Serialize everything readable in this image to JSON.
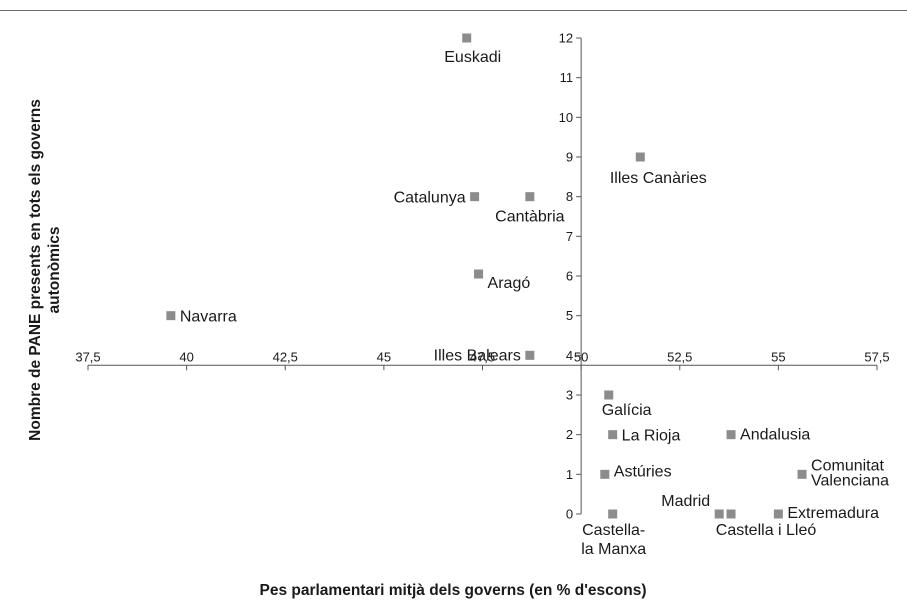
{
  "chart_data": {
    "type": "scatter",
    "title": "",
    "xlabel": "Pes parlamentari mitjà dels governs (en % d'escons)",
    "ylabel_lines": [
      "Nombre de PANE presents en tots els governs",
      "autonòmics"
    ],
    "xlim": [
      37.5,
      57.5
    ],
    "ylim": [
      0,
      12
    ],
    "x_axis_crosses_y_at": 3.75,
    "y_axis_crosses_x_at": 50,
    "x_ticks": [
      37.5,
      40,
      42.5,
      45,
      47.5,
      50,
      52.5,
      55,
      57.5
    ],
    "x_tick_labels": [
      "37,5",
      "40",
      "42,5",
      "45",
      "47,5",
      "50",
      "52,5",
      "55",
      "57,5"
    ],
    "y_ticks": [
      0,
      1,
      2,
      3,
      4,
      5,
      6,
      7,
      8,
      9,
      10,
      11,
      12
    ],
    "y_tick_labels": [
      "0",
      "1",
      "2",
      "3",
      "4",
      "5",
      "6",
      "7",
      "8",
      "9",
      "10",
      "11",
      "12"
    ],
    "grid": false,
    "legend": "none",
    "marker_color": "#8c8c8c",
    "points": [
      {
        "label": "Euskadi",
        "x": 47.1,
        "y": 12
      },
      {
        "label": "Illes Canàries",
        "x": 51.5,
        "y": 9
      },
      {
        "label": "Catalunya",
        "x": 47.3,
        "y": 8
      },
      {
        "label": "Cantàbria",
        "x": 48.7,
        "y": 8
      },
      {
        "label": "Aragó",
        "x": 47.4,
        "y": 6.05
      },
      {
        "label": "Navarra",
        "x": 39.6,
        "y": 5
      },
      {
        "label": "Illes Balears",
        "x": 48.7,
        "y": 4
      },
      {
        "label": "Galícia",
        "x": 50.7,
        "y": 3
      },
      {
        "label": "La Rioja",
        "x": 50.8,
        "y": 2
      },
      {
        "label": "Andalusia",
        "x": 53.8,
        "y": 2
      },
      {
        "label": "Astúries",
        "x": 50.6,
        "y": 1
      },
      {
        "label": "Comunitat Valenciana",
        "x": 55.6,
        "y": 1
      },
      {
        "label": "Castella-la Manxa",
        "x": 50.8,
        "y": 0
      },
      {
        "label": "Madrid",
        "x": 53.5,
        "y": 0
      },
      {
        "label": "Castella i Lleó",
        "x": 53.8,
        "y": 0
      },
      {
        "label": "Extremadura",
        "x": 55.0,
        "y": 0
      }
    ]
  }
}
